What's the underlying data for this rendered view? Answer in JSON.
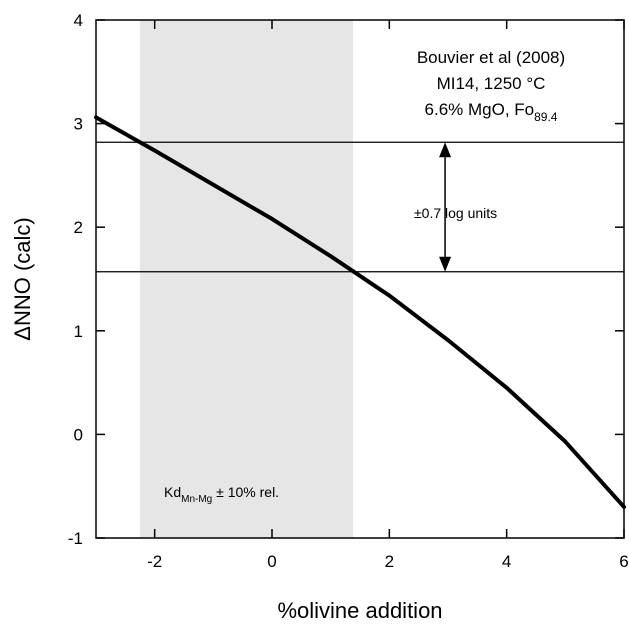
{
  "chart_data": {
    "type": "line",
    "xlabel": "%olivine addition",
    "ylabel": "ΔNNO (calc)",
    "xlim": [
      -3,
      6
    ],
    "ylim": [
      -1,
      4
    ],
    "x_ticks": [
      -2,
      0,
      2,
      4,
      6
    ],
    "x_tick_labels": [
      "-2",
      "0",
      "2",
      "4",
      "6"
    ],
    "y_ticks": [
      -1,
      0,
      1,
      2,
      3,
      4
    ],
    "y_tick_labels": [
      "-1",
      "0",
      "1",
      "2",
      "3",
      "4"
    ],
    "grid": false,
    "series": [
      {
        "x": [
          -3,
          -2,
          -1,
          0,
          1,
          2,
          3,
          4,
          5,
          6
        ],
        "y": [
          3.06,
          2.74,
          2.41,
          2.08,
          1.72,
          1.34,
          0.91,
          0.45,
          -0.07,
          -0.7
        ],
        "color": "#000000"
      }
    ],
    "shaded_region": {
      "x_range": [
        -2.25,
        1.38
      ],
      "color": "#e5e6e5"
    },
    "hlines": [
      2.82,
      1.57
    ],
    "arrow": {
      "x": 2.95,
      "y_from": 1.57,
      "y_to": 2.82,
      "label": "±0.7 log units"
    },
    "annotation_lines": [
      "Bouvier et al (2008)",
      "MI14, 1250 °C",
      "6.6% MgO, Fo"
    ],
    "annotation_subscript": "89.4",
    "kd_label": {
      "main": "Kd",
      "subscript": "Mn-Mg",
      "suffix": " ± 10% rel."
    }
  }
}
